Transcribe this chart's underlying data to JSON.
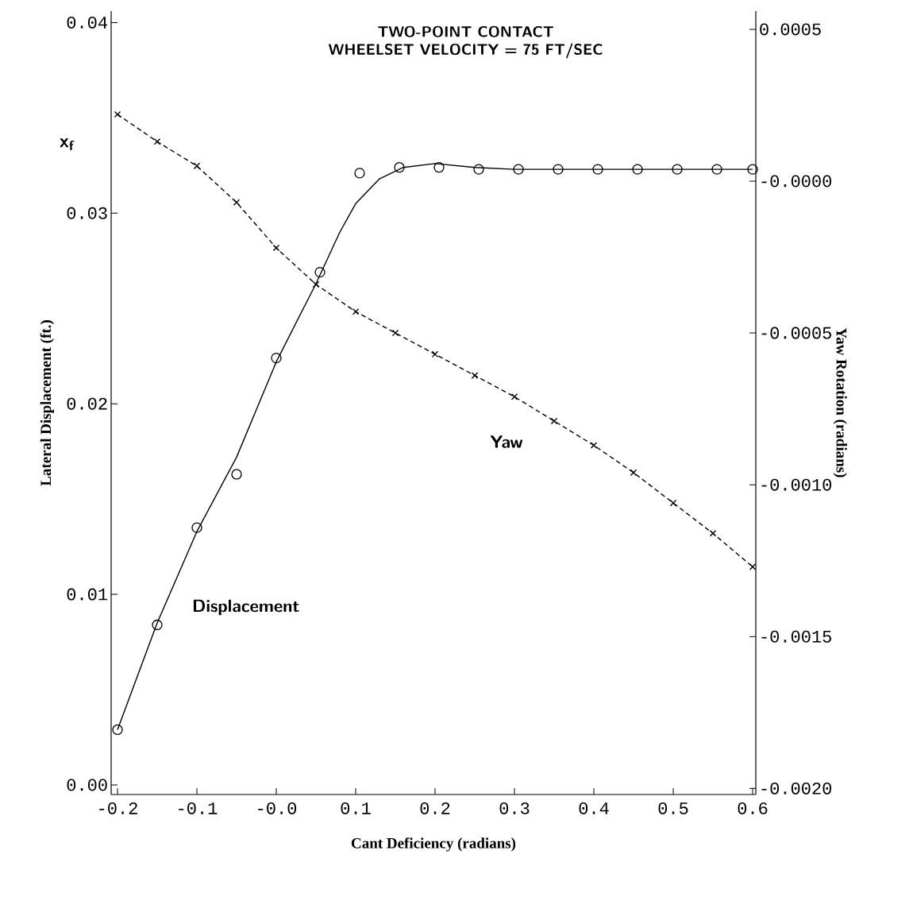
{
  "chart_data": {
    "type": "line",
    "title": "TWO-POINT CONTACT",
    "subtitle": "WHEELSET VELOCITY = 75 FT/SEC",
    "xlabel": "Cant Deficiency (radians)",
    "ylabel": "Lateral Displacement (ft.)",
    "y2label": "Yaw Rotation (radians)",
    "annotations": [
      "x$_{f}$"
    ],
    "xlim": [
      -0.208,
      0.604
    ],
    "xticks": [
      {
        "value": -0.2,
        "label": "-0.2"
      },
      {
        "value": -0.1,
        "label": "-0.1"
      },
      {
        "value": 0,
        "label": "-0.0"
      },
      {
        "value": 0.1,
        "label": "0.1"
      },
      {
        "value": 0.2,
        "label": "0.2"
      },
      {
        "value": 0.3,
        "label": "0.3"
      },
      {
        "value": 0.4,
        "label": "0.4"
      },
      {
        "value": 0.5,
        "label": "0.5"
      },
      {
        "value": 0.6,
        "label": "0.6"
      }
    ],
    "ylim": [
      -0.0005,
      0.0406
    ],
    "yticks": [
      {
        "value": 0,
        "label": "0.00"
      },
      {
        "value": 0.01,
        "label": "0.01"
      },
      {
        "value": 0.02,
        "label": "0.02"
      },
      {
        "value": 0.03,
        "label": "0.03"
      },
      {
        "value": 0.04,
        "label": "0.04"
      }
    ],
    "y2lim": [
      -0.00202,
      0.00056
    ],
    "y2ticks": [
      {
        "value": 0.0005,
        "label": "0.0005"
      },
      {
        "value": 0,
        "label": "-0.0000"
      },
      {
        "value": -0.0005,
        "label": "-0.0005"
      },
      {
        "value": -0.001,
        "label": "-0.0010"
      },
      {
        "value": -0.0015,
        "label": "-0.0015"
      },
      {
        "value": -0.002,
        "label": "-0.0020"
      }
    ],
    "grid": false,
    "series": [
      {
        "name": "Displacement",
        "type": "scatter",
        "marker": "circle",
        "color": "#000000",
        "x": [
          -0.2,
          -0.15,
          -0.1,
          -0.05,
          0,
          0.055,
          0.105,
          0.155,
          0.205,
          0.255,
          0.305,
          0.355,
          0.405,
          0.455,
          0.505,
          0.555,
          0.6
        ],
        "values": [
          0.0029,
          0.0084,
          0.0135,
          0.0163,
          0.0224,
          0.0269,
          0.0321,
          0.0324,
          0.0324,
          0.0323,
          0.0323,
          0.0323,
          0.0323,
          0.0323,
          0.0323,
          0.0323,
          0.0323
        ]
      },
      {
        "marker": "none",
        "line_style": "solid",
        "color": "#000000",
        "x": [
          -0.2,
          -0.15,
          -0.1,
          -0.05,
          0,
          0.05,
          0.08,
          0.1,
          0.13,
          0.16,
          0.2,
          0.25,
          0.3,
          0.4,
          0.5,
          0.6
        ],
        "values": [
          0.0029,
          0.0085,
          0.0133,
          0.0172,
          0.0222,
          0.0263,
          0.029,
          0.0305,
          0.0318,
          0.0324,
          0.0326,
          0.0324,
          0.0323,
          0.0323,
          0.0323,
          0.0323
        ]
      },
      {
        "name": "Yaw",
        "type": "line",
        "axis": "y2",
        "marker": "cross",
        "line_style": "dashed",
        "color": "#000000",
        "x": [
          -0.2,
          -0.15,
          -0.1,
          -0.05,
          0,
          0.05,
          0.1,
          0.15,
          0.2,
          0.25,
          0.3,
          0.35,
          0.4,
          0.45,
          0.5,
          0.55,
          0.6
        ],
        "values": [
          0.00022,
          0.00013,
          5e-05,
          -7e-05,
          -0.00022,
          -0.00034,
          -0.00043,
          -0.0005,
          -0.00057,
          -0.00064,
          -0.00071,
          -0.00079,
          -0.00087,
          -0.00096,
          -0.00106,
          -0.00116,
          -0.00127
        ]
      }
    ]
  }
}
